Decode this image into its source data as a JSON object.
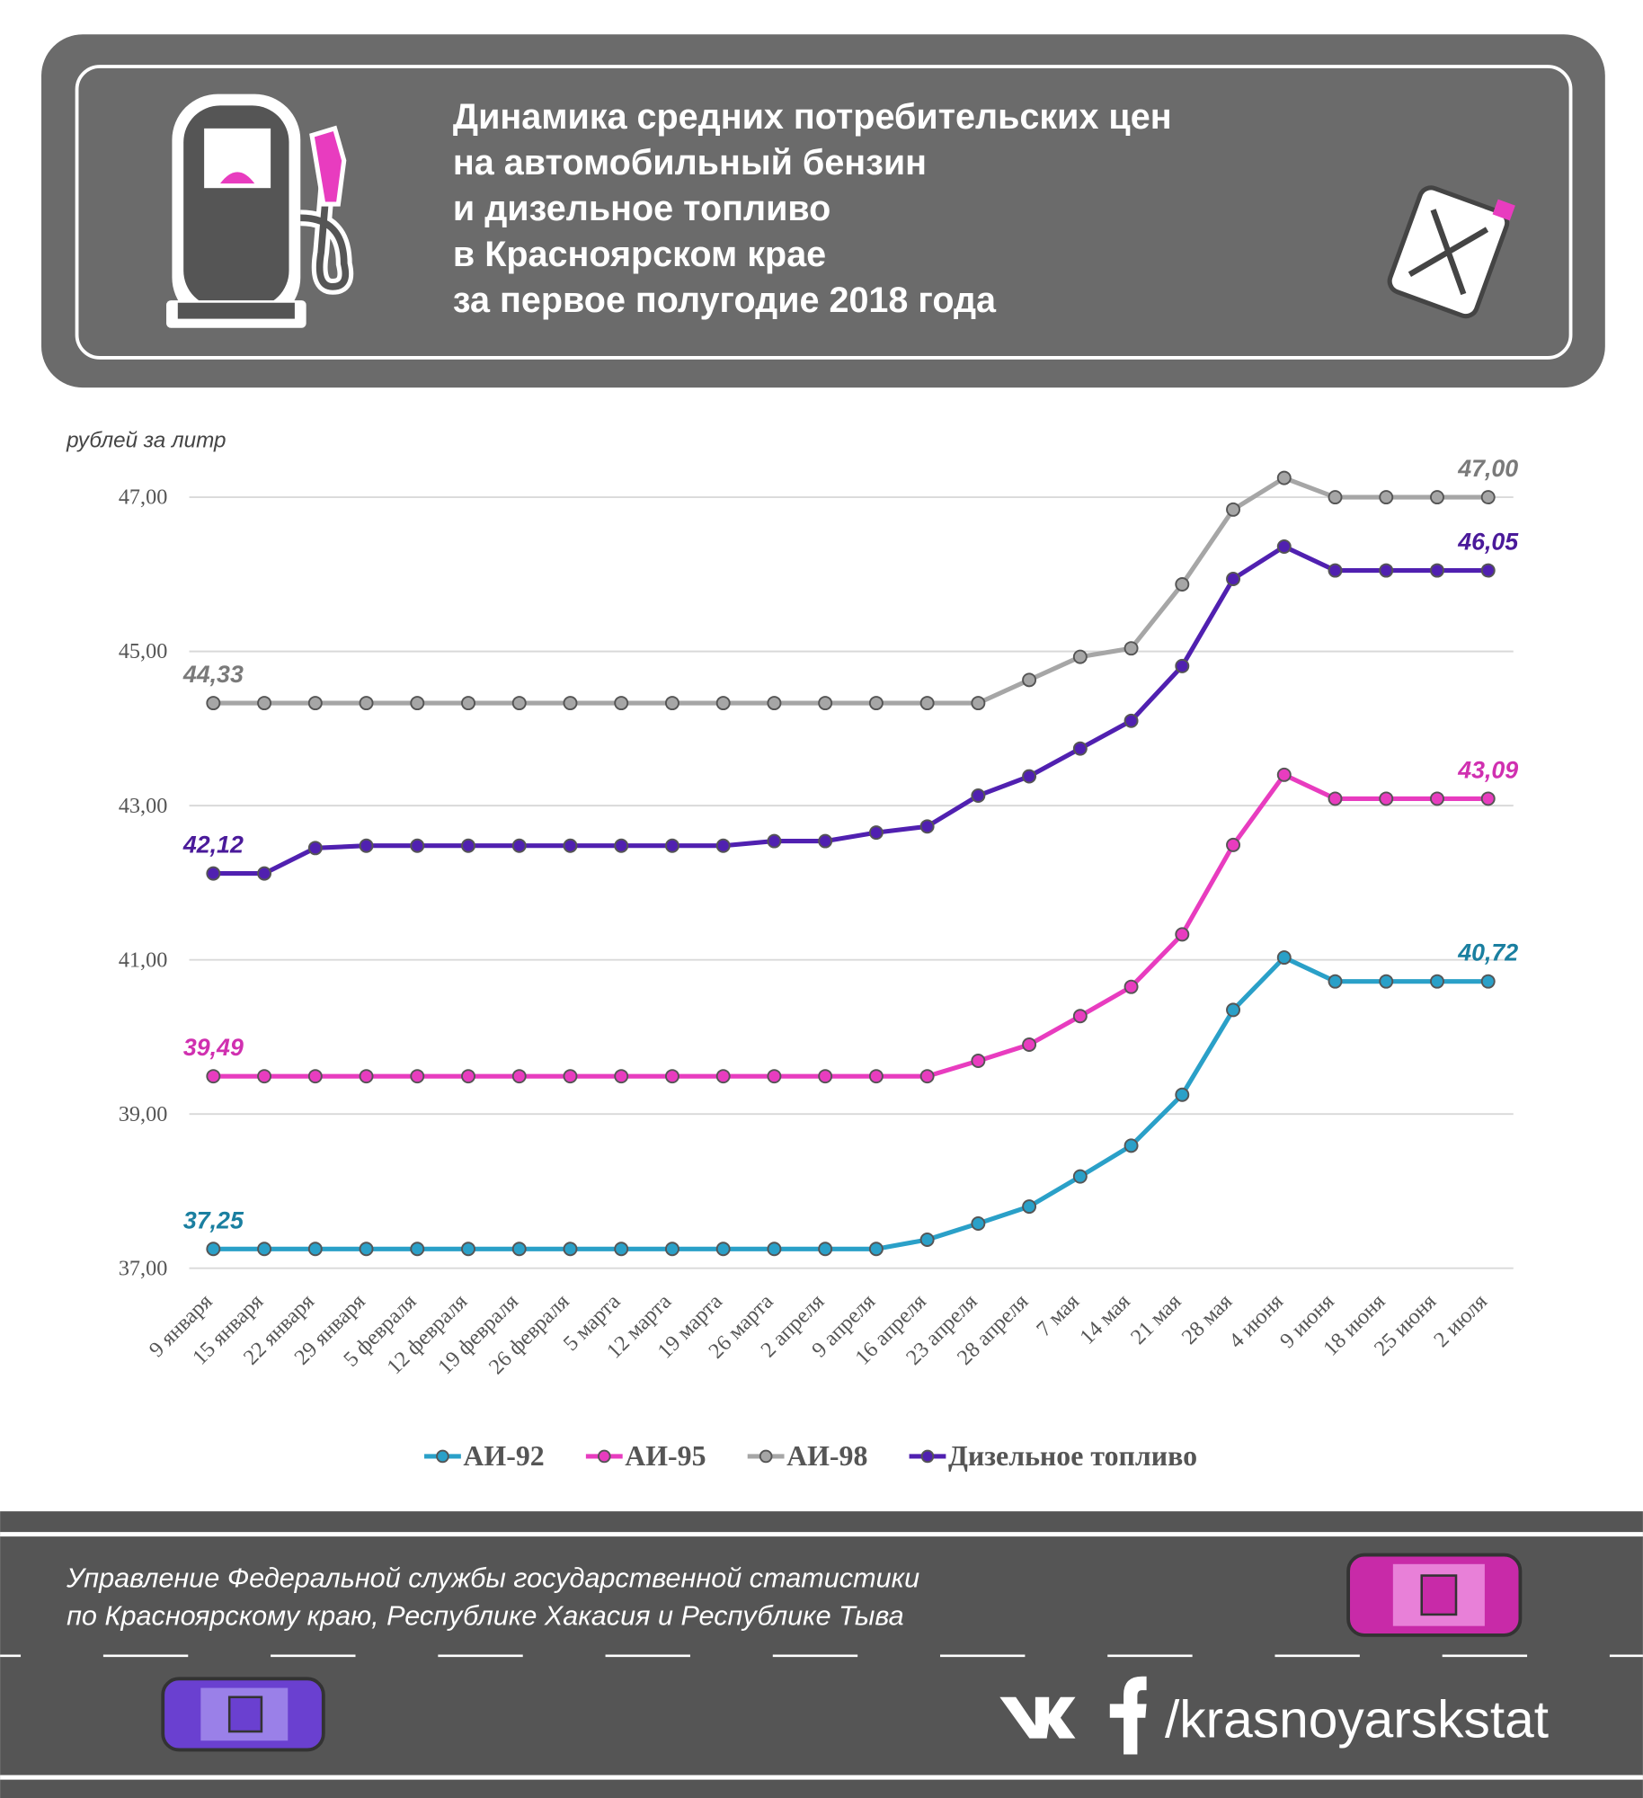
{
  "header": {
    "title": [
      "Динамика средних потребительских цен",
      "на автомобильный бензин",
      "и дизельное топливо",
      "в Красноярском крае",
      "за первое полугодие 2018 года"
    ]
  },
  "chart_data": {
    "type": "line",
    "y_label": "рублей за литр",
    "categories": [
      "9 января",
      "15 января",
      "22 января",
      "29 января",
      "5 февраля",
      "12 февраля",
      "19 февраля",
      "26 февраля",
      "5 марта",
      "12 марта",
      "19 марта",
      "26 марта",
      "2 апреля",
      "9 апреля",
      "16 апреля",
      "23 апреля",
      "28 апреля",
      "7 мая",
      "14 мая",
      "21 мая",
      "28 мая",
      "4 июня",
      "9 июня",
      "18 июня",
      "25 июня",
      "2 июля"
    ],
    "ylim": [
      37,
      47.5
    ],
    "yticks": [
      {
        "value": 37,
        "label": "37,00"
      },
      {
        "value": 39,
        "label": "39,00"
      },
      {
        "value": 41,
        "label": "41,00"
      },
      {
        "value": 43,
        "label": "43,00"
      },
      {
        "value": 45,
        "label": "45,00"
      },
      {
        "value": 47,
        "label": "47,00"
      }
    ],
    "grid": true,
    "legend": "bottom",
    "series": [
      {
        "name": "АИ-92",
        "color": "#2aa0c8",
        "label_color": "#1a7fa0",
        "values": [
          37.25,
          37.25,
          37.25,
          37.25,
          37.25,
          37.25,
          37.25,
          37.25,
          37.25,
          37.25,
          37.25,
          37.25,
          37.25,
          37.25,
          37.37,
          37.58,
          37.8,
          38.19,
          38.59,
          39.25,
          40.35,
          41.03,
          40.72,
          40.72,
          40.72,
          40.72
        ],
        "value_labels": [
          "37,25",
          null,
          null,
          null,
          null,
          null,
          null,
          null,
          null,
          null,
          null,
          null,
          null,
          null,
          null,
          null,
          null,
          null,
          null,
          null,
          null,
          null,
          null,
          null,
          null,
          "40,72"
        ]
      },
      {
        "name": "АИ-95",
        "color": "#e83cbf",
        "label_color": "#d030b0",
        "values": [
          39.49,
          39.49,
          39.49,
          39.49,
          39.49,
          39.49,
          39.49,
          39.49,
          39.49,
          39.49,
          39.49,
          39.49,
          39.49,
          39.49,
          39.49,
          39.69,
          39.9,
          40.27,
          40.65,
          41.33,
          42.49,
          43.4,
          43.09,
          43.09,
          43.09,
          43.09
        ],
        "value_labels": [
          "39,49",
          null,
          null,
          null,
          null,
          null,
          null,
          null,
          null,
          null,
          null,
          null,
          null,
          null,
          null,
          null,
          null,
          null,
          null,
          null,
          null,
          null,
          null,
          null,
          null,
          "43,09"
        ]
      },
      {
        "name": "АИ-98",
        "color": "#a6a6a6",
        "label_color": "#7a7a7a",
        "values": [
          44.33,
          44.33,
          44.33,
          44.33,
          44.33,
          44.33,
          44.33,
          44.33,
          44.33,
          44.33,
          44.33,
          44.33,
          44.33,
          44.33,
          44.33,
          44.33,
          44.63,
          44.93,
          45.04,
          45.87,
          46.84,
          47.25,
          47.0,
          47.0,
          47.0,
          47.0
        ],
        "value_labels": [
          "44,33",
          null,
          null,
          null,
          null,
          null,
          null,
          null,
          null,
          null,
          null,
          null,
          null,
          null,
          null,
          null,
          null,
          null,
          null,
          null,
          null,
          null,
          null,
          null,
          null,
          "47,00"
        ]
      },
      {
        "name": "Дизельное топливо",
        "color": "#5020b0",
        "label_color": "#4a1a9a",
        "values": [
          42.12,
          42.12,
          42.45,
          42.48,
          42.48,
          42.48,
          42.48,
          42.48,
          42.48,
          42.48,
          42.48,
          42.54,
          42.54,
          42.65,
          42.73,
          43.13,
          43.38,
          43.74,
          44.1,
          44.81,
          45.94,
          46.36,
          46.05,
          46.05,
          46.05,
          46.05
        ],
        "value_labels": [
          "42,12",
          null,
          null,
          null,
          null,
          null,
          null,
          null,
          null,
          null,
          null,
          null,
          null,
          null,
          null,
          null,
          null,
          null,
          null,
          null,
          null,
          null,
          null,
          null,
          null,
          "46,05"
        ]
      }
    ]
  },
  "footer": {
    "org": [
      "Управление Федеральной службы государственной статистики",
      "по Красноярскому краю, Республике Хакасия и Республике Тыва"
    ],
    "handle": "/krasnoyarskstat"
  }
}
